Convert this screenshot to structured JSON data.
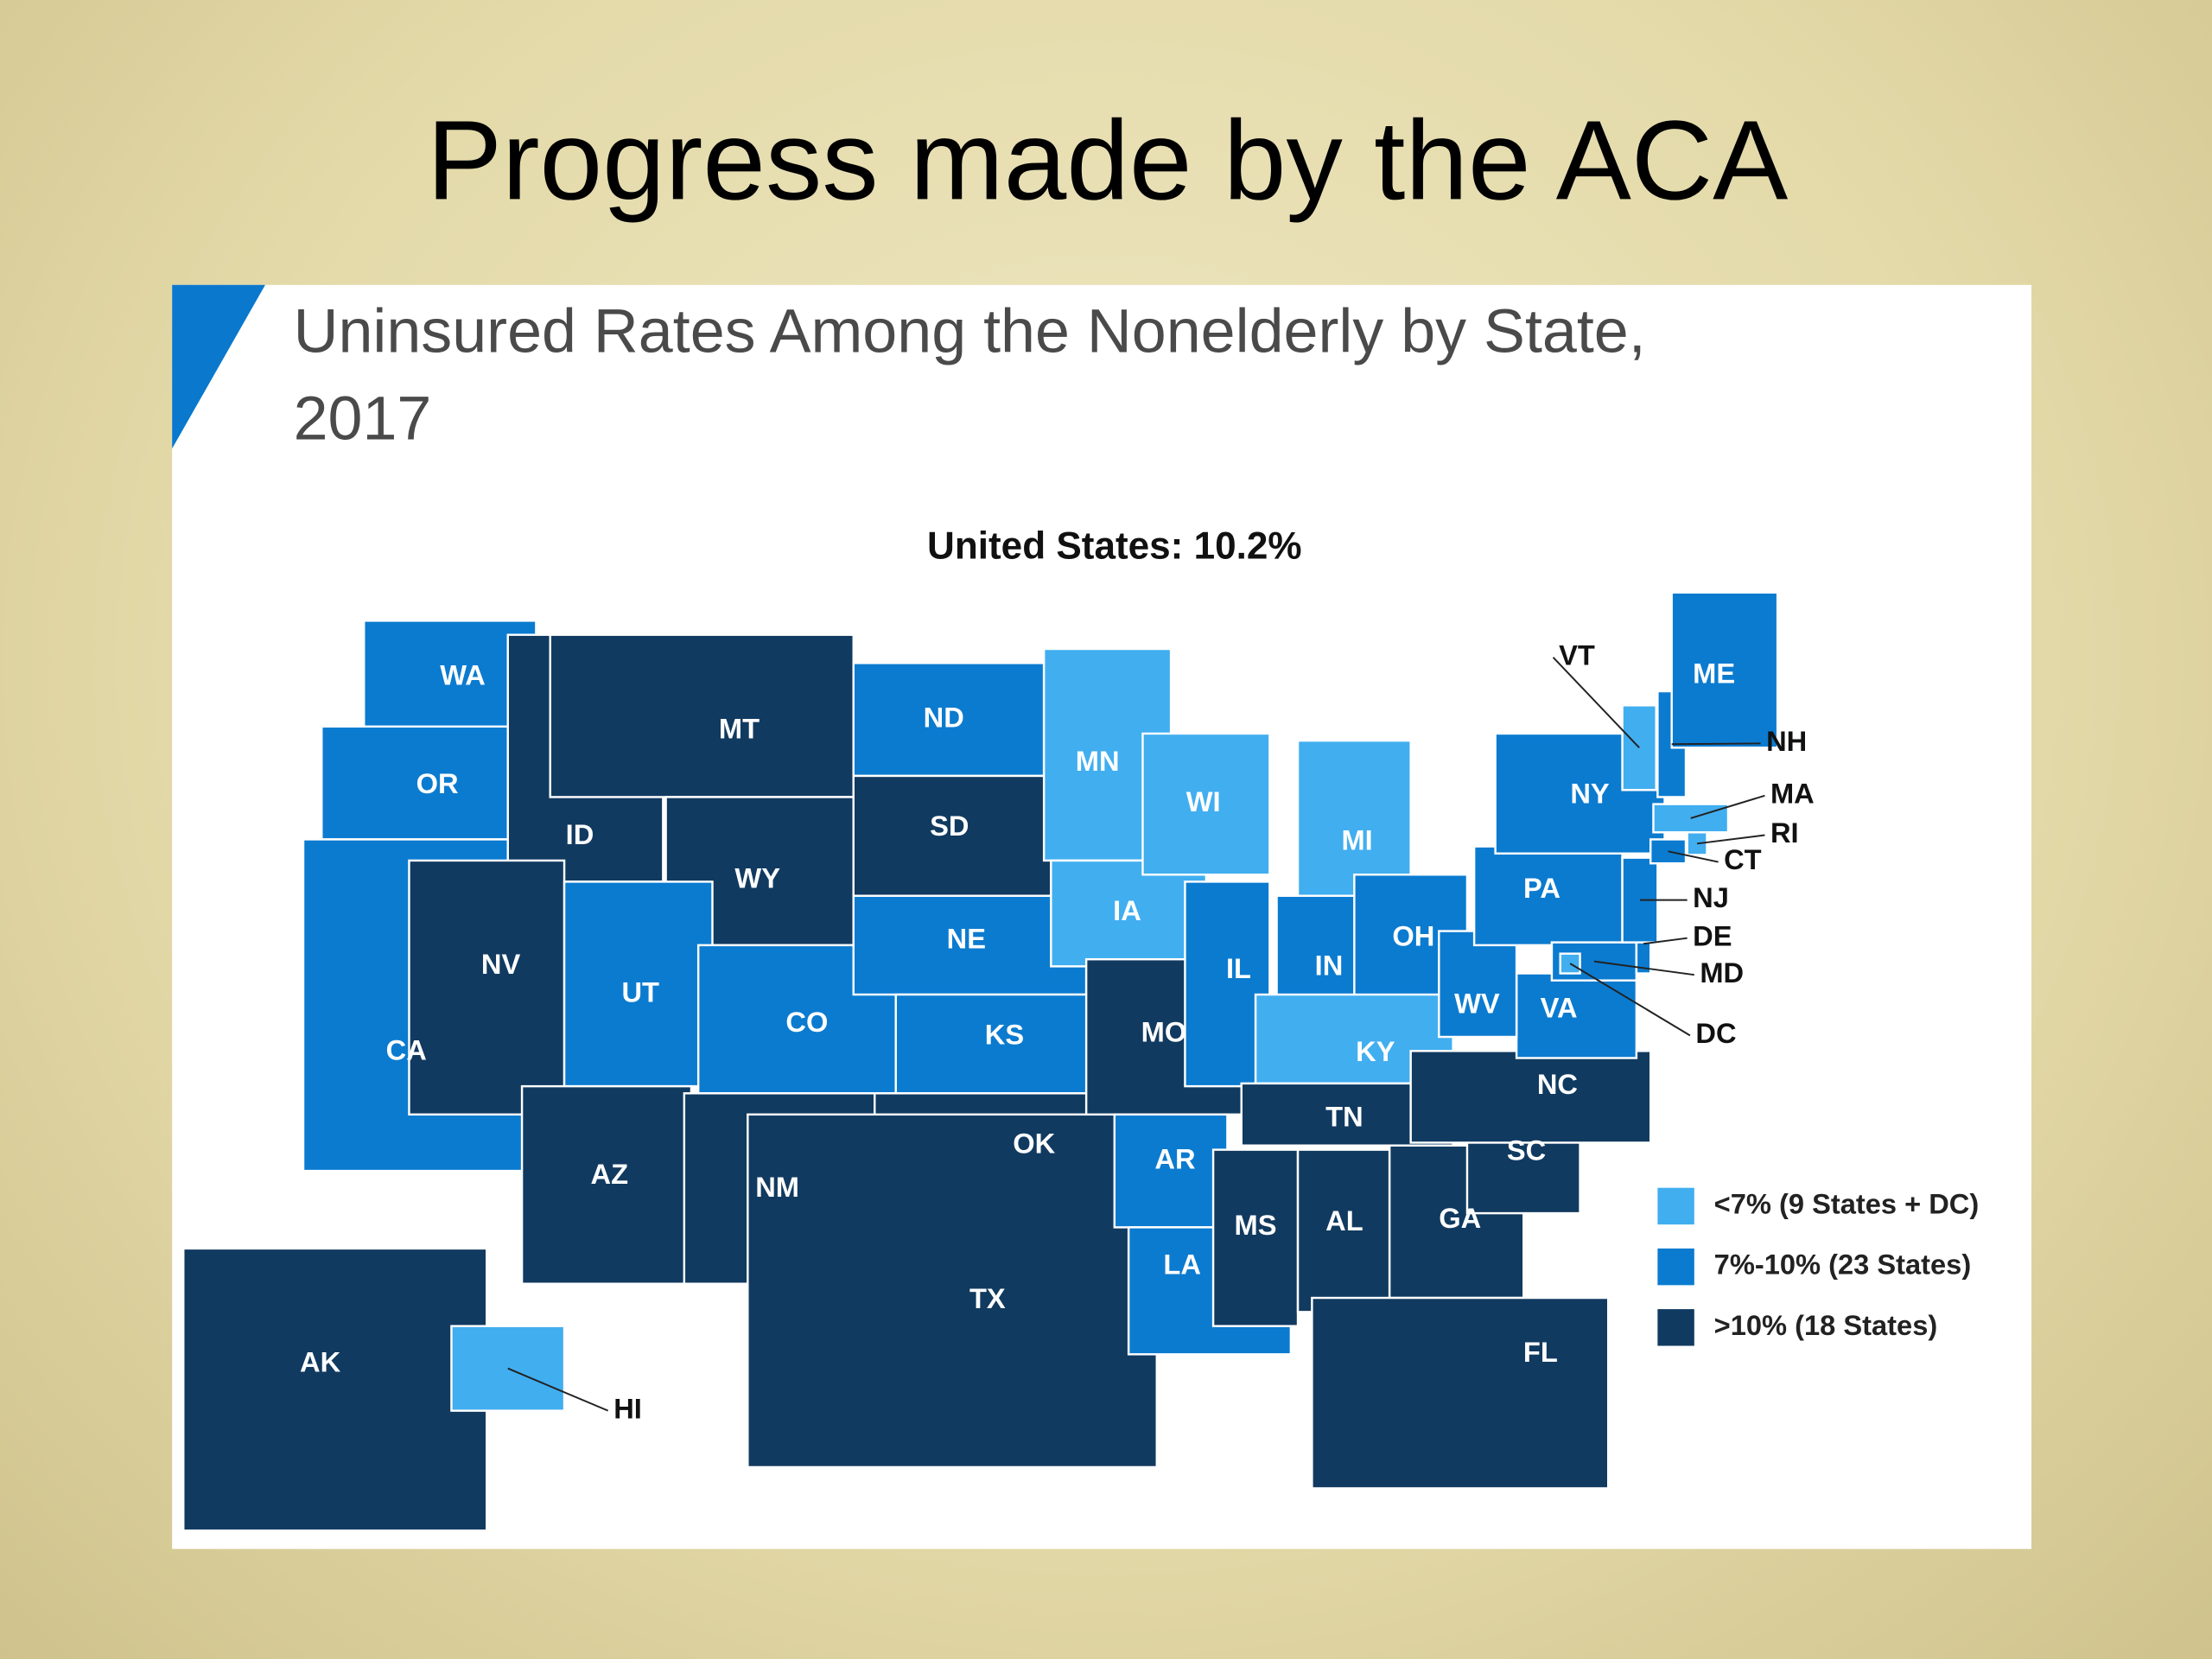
{
  "slide_title": "Progress made by the ACA",
  "map_title": [
    "Uninsured Rates Among the Nonelderly by State,",
    "2017"
  ],
  "summary": "United States: 10.2%",
  "legend": [
    {
      "label": "<7% (9 States + DC)",
      "color": "#41aef0"
    },
    {
      "label": "7%-10% (23 States)",
      "color": "#0b7bd0"
    },
    {
      "label": ">10% (18 States)",
      "color": "#113a60"
    }
  ],
  "states": [
    {
      "label": "WA",
      "group": 1
    },
    {
      "label": "OR",
      "group": 1
    },
    {
      "label": "CA",
      "group": 1
    },
    {
      "label": "ID",
      "group": 2
    },
    {
      "label": "NV",
      "group": 2
    },
    {
      "label": "MT",
      "group": 2
    },
    {
      "label": "WY",
      "group": 2
    },
    {
      "label": "UT",
      "group": 1
    },
    {
      "label": "AZ",
      "group": 2
    },
    {
      "label": "CO",
      "group": 1
    },
    {
      "label": "NM",
      "group": 2
    },
    {
      "label": "ND",
      "group": 1
    },
    {
      "label": "SD",
      "group": 2
    },
    {
      "label": "NE",
      "group": 1
    },
    {
      "label": "KS",
      "group": 1
    },
    {
      "label": "OK",
      "group": 2
    },
    {
      "label": "TX",
      "group": 2
    },
    {
      "label": "MN",
      "group": 0
    },
    {
      "label": "IA",
      "group": 0
    },
    {
      "label": "MO",
      "group": 2
    },
    {
      "label": "AR",
      "group": 1
    },
    {
      "label": "LA",
      "group": 1
    },
    {
      "label": "WI",
      "group": 0
    },
    {
      "label": "IL",
      "group": 1
    },
    {
      "label": "MI",
      "group": 0
    },
    {
      "label": "IN",
      "group": 1
    },
    {
      "label": "OH",
      "group": 1
    },
    {
      "label": "KY",
      "group": 0
    },
    {
      "label": "TN",
      "group": 2
    },
    {
      "label": "MS",
      "group": 2
    },
    {
      "label": "AL",
      "group": 2
    },
    {
      "label": "GA",
      "group": 2
    },
    {
      "label": "FL",
      "group": 2
    },
    {
      "label": "SC",
      "group": 2
    },
    {
      "label": "NC",
      "group": 2
    },
    {
      "label": "VA",
      "group": 1
    },
    {
      "label": "WV",
      "group": 1
    },
    {
      "label": "PA",
      "group": 1
    },
    {
      "label": "NY",
      "group": 1
    },
    {
      "label": "MD",
      "group": 1
    },
    {
      "label": "DE",
      "group": 1
    },
    {
      "label": "NJ",
      "group": 1
    },
    {
      "label": "CT",
      "group": 1
    },
    {
      "label": "RI",
      "group": 0
    },
    {
      "label": "MA",
      "group": 0
    },
    {
      "label": "VT",
      "group": 0
    },
    {
      "label": "NH",
      "group": 1
    },
    {
      "label": "ME",
      "group": 1
    },
    {
      "label": "DC",
      "group": 0
    },
    {
      "label": "AK",
      "group": 2
    },
    {
      "label": "HI",
      "group": 0
    }
  ]
}
